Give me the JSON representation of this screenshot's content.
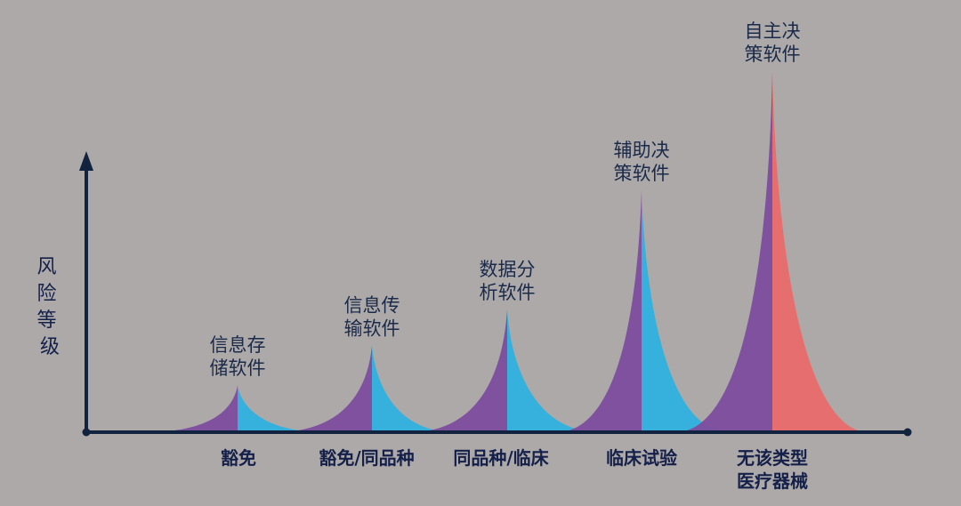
{
  "diagram": {
    "y_axis_label": "风险等级",
    "colors": {
      "background": "#ada9a8",
      "axis": "#12233f",
      "left_face": "#7d4e9f",
      "right_face": "#2fb0de",
      "top_right_face": "#ea6a6a"
    },
    "peaks": [
      {
        "label_line1": "信息存",
        "label_line2": "储软件",
        "category": [
          "豁免"
        ],
        "relative_height": 0.13
      },
      {
        "label_line1": "信息传",
        "label_line2": "输软件",
        "category": [
          "豁免/同品种"
        ],
        "relative_height": 0.24
      },
      {
        "label_line1": "数据分",
        "label_line2": "析软件",
        "category": [
          "同品种/临床"
        ],
        "relative_height": 0.34
      },
      {
        "label_line1": "辅助决",
        "label_line2": "策软件",
        "category": [
          "临床试验"
        ],
        "relative_height": 0.67
      },
      {
        "label_line1": "自主决",
        "label_line2": "策软件",
        "category": [
          "无该类型",
          "医疗器械"
        ],
        "relative_height": 1.0
      }
    ]
  }
}
